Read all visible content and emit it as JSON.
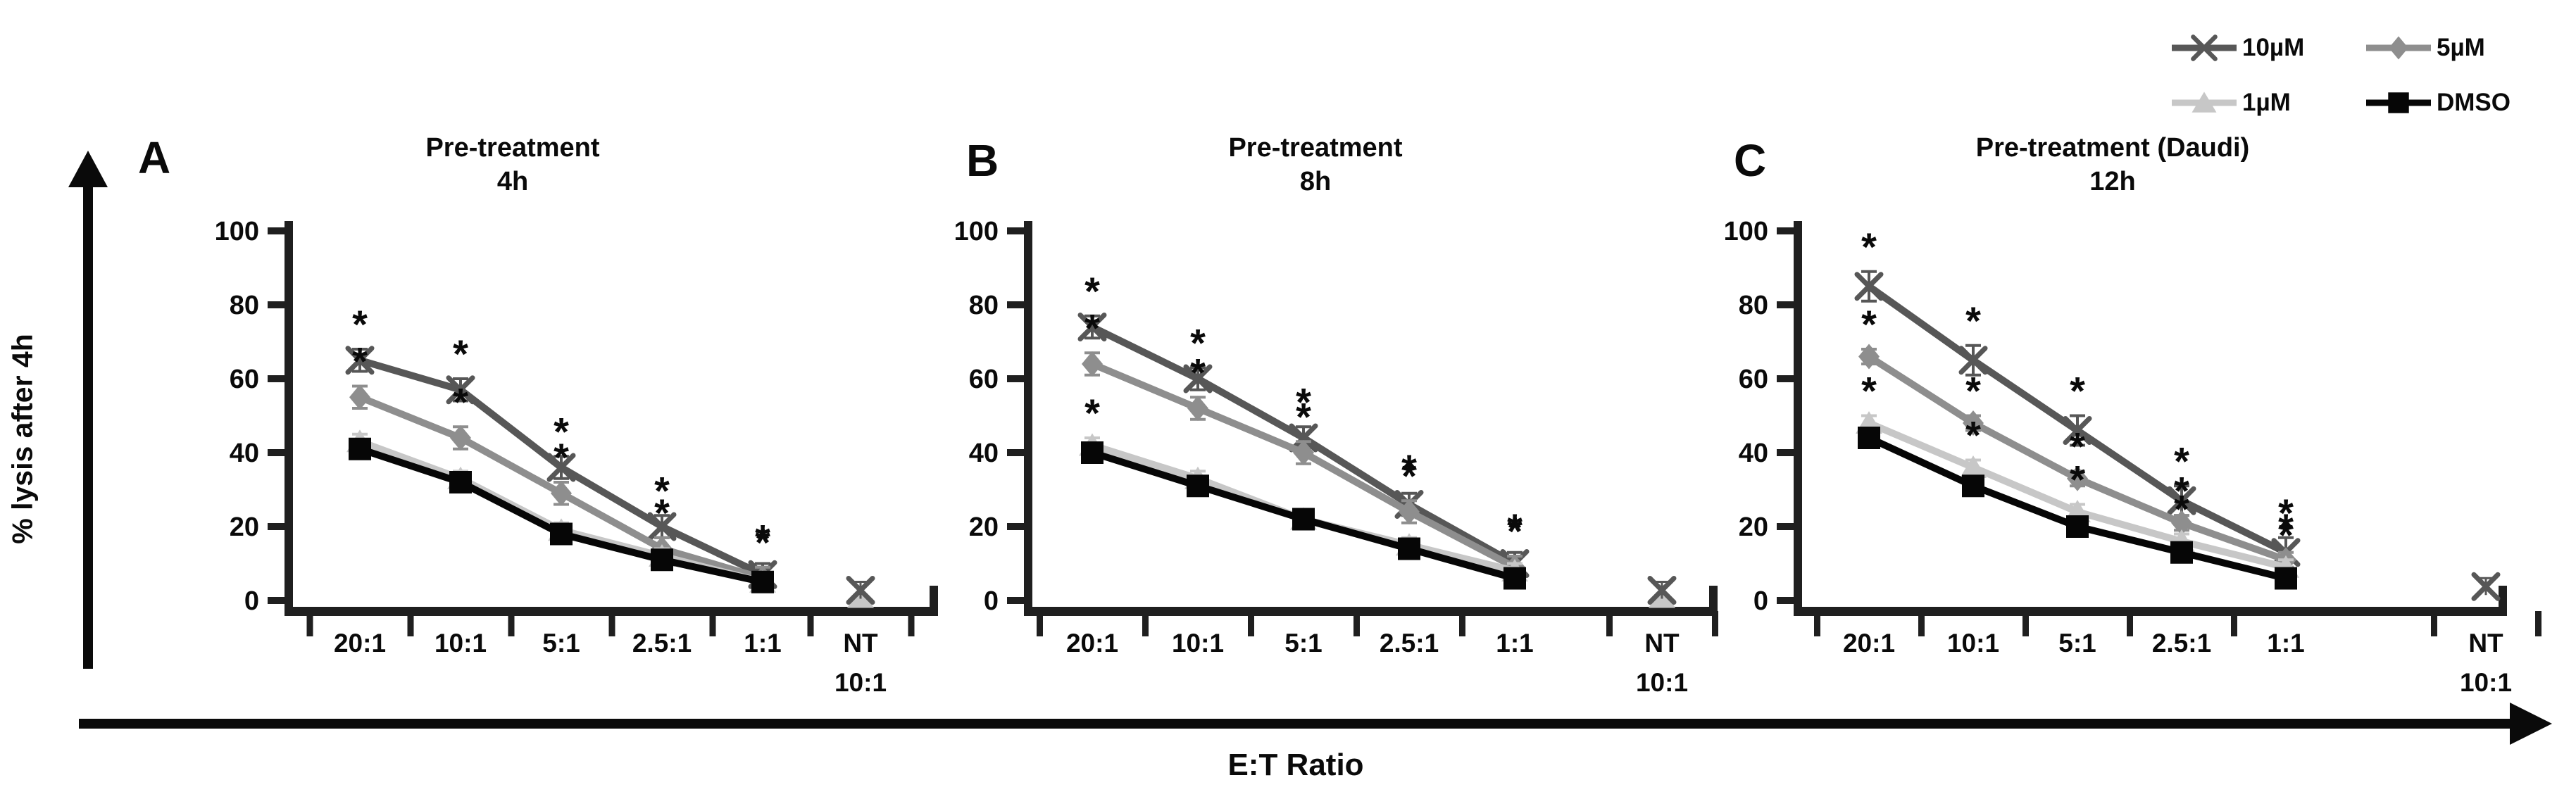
{
  "figure": {
    "y_axis_label": "% lysis after 4h",
    "x_axis_label": "E:T Ratio"
  },
  "legend": {
    "items": [
      {
        "label": "10µM",
        "marker": "x",
        "color": "#575757"
      },
      {
        "label": "5µM",
        "marker": "diamond",
        "color": "#8e8e8e"
      },
      {
        "label": "1µM",
        "marker": "triangle",
        "color": "#c7c7c7"
      },
      {
        "label": "DMSO",
        "marker": "square",
        "color": "#060606"
      }
    ]
  },
  "axes": {
    "y_ticks": [
      100,
      80,
      60,
      40,
      20,
      0
    ],
    "ylim": [
      0,
      100
    ],
    "categories": [
      "20:1",
      "10:1",
      "5:1",
      "2.5:1",
      "1:1"
    ],
    "nt_category_line1": "NT",
    "nt_category_line2": "10:1",
    "axis_color": "#1f1f1f"
  },
  "chart_data": [
    {
      "type": "line",
      "panel_letter": "A",
      "title_line1": "Pre-treatment",
      "title_line2": "4h",
      "x_categories": [
        "20:1",
        "10:1",
        "5:1",
        "2.5:1",
        "1:1"
      ],
      "ylim": [
        0,
        100
      ],
      "series": [
        {
          "name": "10µM",
          "marker": "x",
          "color": "#575757",
          "values": [
            65,
            57,
            36,
            20,
            7
          ],
          "err": 3,
          "sig": [
            1,
            1,
            1,
            1,
            1
          ]
        },
        {
          "name": "5µM",
          "marker": "diamond",
          "color": "#8e8e8e",
          "values": [
            55,
            44,
            29,
            14,
            6
          ],
          "err": 3,
          "sig": [
            1,
            1,
            1,
            1,
            1
          ]
        },
        {
          "name": "1µM",
          "marker": "triangle",
          "color": "#c7c7c7",
          "values": [
            43,
            33,
            19,
            12,
            5
          ],
          "err": 2,
          "sig": [
            0,
            0,
            0,
            0,
            0
          ]
        },
        {
          "name": "DMSO",
          "marker": "square",
          "color": "#060606",
          "values": [
            41,
            32,
            18,
            11,
            5
          ],
          "err": 2,
          "sig": [
            0,
            0,
            0,
            0,
            0
          ]
        }
      ],
      "nt_point": {
        "value": 2,
        "markers": [
          "x",
          "triangle"
        ]
      }
    },
    {
      "type": "line",
      "panel_letter": "B",
      "title_line1": "Pre-treatment",
      "title_line2": "8h",
      "x_categories": [
        "20:1",
        "10:1",
        "5:1",
        "2.5:1",
        "1:1"
      ],
      "ylim": [
        0,
        100
      ],
      "series": [
        {
          "name": "10µM",
          "marker": "x",
          "color": "#575757",
          "values": [
            74,
            60,
            44,
            26,
            10
          ],
          "err": 3,
          "sig": [
            1,
            1,
            1,
            1,
            1
          ]
        },
        {
          "name": "5µM",
          "marker": "diamond",
          "color": "#8e8e8e",
          "values": [
            64,
            52,
            40,
            24,
            9
          ],
          "err": 3,
          "sig": [
            1,
            1,
            1,
            1,
            1
          ]
        },
        {
          "name": "1µM",
          "marker": "triangle",
          "color": "#c7c7c7",
          "values": [
            42,
            33,
            22,
            15,
            8
          ],
          "err": 2,
          "sig": [
            1,
            0,
            0,
            0,
            0
          ]
        },
        {
          "name": "DMSO",
          "marker": "square",
          "color": "#060606",
          "values": [
            40,
            31,
            22,
            14,
            6
          ],
          "err": 2,
          "sig": [
            0,
            0,
            0,
            0,
            0
          ]
        }
      ],
      "nt_point": {
        "value": 2,
        "markers": [
          "x",
          "triangle"
        ]
      }
    },
    {
      "type": "line",
      "panel_letter": "C",
      "title_line1": "Pre-treatment (Daudi)",
      "title_line2": "12h",
      "x_categories": [
        "20:1",
        "10:1",
        "5:1",
        "2.5:1",
        "1:1"
      ],
      "ylim": [
        0,
        100
      ],
      "series": [
        {
          "name": "10µM",
          "marker": "x",
          "color": "#575757",
          "values": [
            85,
            65,
            46,
            27,
            13
          ],
          "err": 4,
          "sig": [
            1,
            1,
            1,
            1,
            1
          ]
        },
        {
          "name": "5µM",
          "marker": "diamond",
          "color": "#8e8e8e",
          "values": [
            66,
            48,
            33,
            21,
            11
          ],
          "err": 2,
          "sig": [
            1,
            1,
            1,
            1,
            1
          ]
        },
        {
          "name": "1µM",
          "marker": "triangle",
          "color": "#c7c7c7",
          "values": [
            48,
            36,
            24,
            16,
            9
          ],
          "err": 2,
          "sig": [
            1,
            1,
            1,
            1,
            1
          ]
        },
        {
          "name": "DMSO",
          "marker": "square",
          "color": "#060606",
          "values": [
            44,
            31,
            20,
            13,
            6
          ],
          "err": 2,
          "sig": [
            0,
            0,
            0,
            0,
            0
          ]
        }
      ],
      "nt_point": {
        "value": 3,
        "markers": [
          "x"
        ]
      }
    }
  ]
}
